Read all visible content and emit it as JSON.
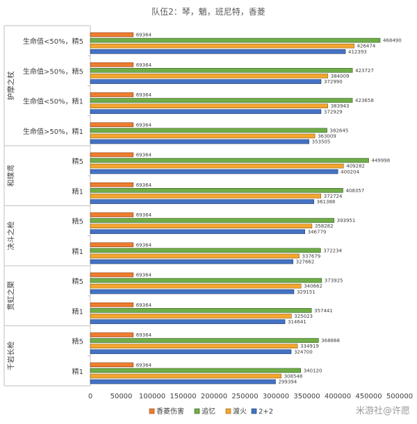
{
  "chart_data": {
    "type": "bar",
    "orientation": "horizontal",
    "title": "队伍2：琴，魈，班尼特，香菱",
    "xlim": [
      0,
      500000
    ],
    "xticks": [
      "0",
      "50000",
      "100000",
      "150000",
      "200000",
      "250000",
      "300000",
      "350000",
      "400000",
      "450000",
      "500000"
    ],
    "grid": false,
    "legend_position": "bottom",
    "series": [
      {
        "name": "香菱伤害",
        "color": "#ED7D31",
        "border": "#8E3B0C"
      },
      {
        "name": "追忆",
        "color": "#70AD47",
        "border": "#2E5A1E"
      },
      {
        "name": "渡火",
        "color": "#F4A630",
        "border": "#8A5A10"
      },
      {
        "name": "2+2",
        "color": "#4472C4",
        "border": "#1F3763"
      }
    ],
    "groups": [
      {
        "label": "护摩之杖",
        "categories": [
          {
            "label": "生命值<50%，精5",
            "values": [
              69364,
              468490,
              426474,
              412393
            ]
          },
          {
            "label": "生命值>50%，精5",
            "values": [
              69364,
              423727,
              384009,
              372990
            ]
          },
          {
            "label": "生命值<50%，精1",
            "values": [
              69364,
              423658,
              383943,
              372929
            ]
          },
          {
            "label": "生命值>50%，精1",
            "values": [
              69364,
              382645,
              363009,
              353505
            ]
          }
        ]
      },
      {
        "label": "和璞鸢",
        "categories": [
          {
            "label": "精5",
            "values": [
              69364,
              449998,
              409282,
              400204
            ]
          },
          {
            "label": "精1",
            "values": [
              69364,
              408357,
              372724,
              361388
            ]
          }
        ]
      },
      {
        "label": "决斗之枪",
        "categories": [
          {
            "label": "精5",
            "values": [
              69364,
              393951,
              358282,
              346779
            ]
          },
          {
            "label": "精1",
            "values": [
              69364,
              372234,
              337679,
              327662
            ]
          }
        ]
      },
      {
        "label": "贯虹之槊",
        "categories": [
          {
            "label": "精5",
            "values": [
              69364,
              373925,
              340662,
              329151
            ]
          },
          {
            "label": "精1",
            "values": [
              69364,
              357441,
              325023,
              314641
            ]
          }
        ]
      },
      {
        "label": "千岩长枪",
        "categories": [
          {
            "label": "精5",
            "values": [
              69364,
              368868,
              334919,
              324700
            ]
          },
          {
            "label": "精1",
            "values": [
              69364,
              340120,
              308548,
              299394
            ]
          }
        ]
      }
    ]
  },
  "watermark": "米游社@许愿"
}
